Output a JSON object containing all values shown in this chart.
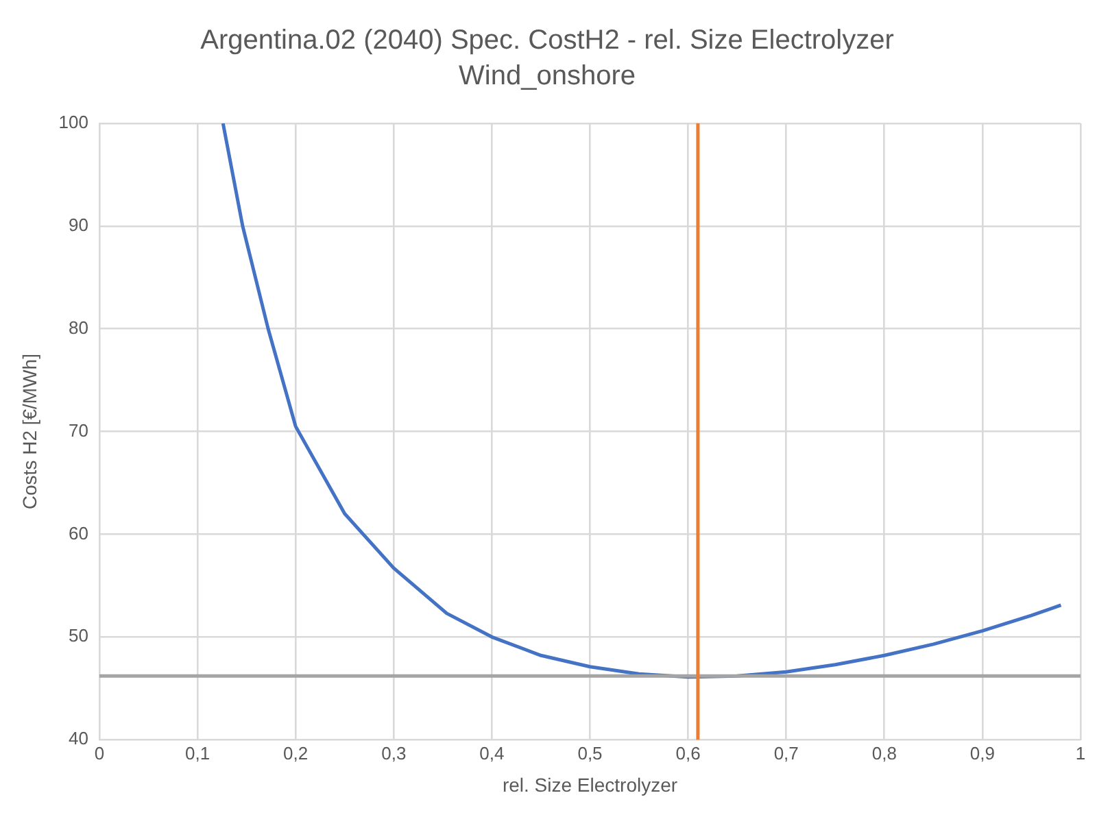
{
  "chart_data": {
    "type": "line",
    "title": "Argentina.02 (2040) Spec. CostH2 - rel. Size Electrolyzer",
    "subtitle": "Wind_onshore",
    "xlabel": "rel. Size Electrolyzer",
    "ylabel": "Costs H2 [€/MWh]",
    "series": [
      {
        "color": "#4472c4",
        "x": [
          0.126,
          0.146,
          0.172,
          0.2,
          0.25,
          0.3,
          0.354,
          0.4,
          0.45,
          0.5,
          0.55,
          0.6,
          0.65,
          0.7,
          0.75,
          0.8,
          0.85,
          0.9,
          0.95,
          0.98
        ],
        "values": [
          100,
          90,
          80,
          70.5,
          62,
          56.7,
          52.3,
          50,
          48.2,
          47.1,
          46.4,
          46.1,
          46.2,
          46.6,
          47.3,
          48.2,
          49.3,
          50.6,
          52.1,
          53.1
        ]
      }
    ],
    "xlim": [
      0,
      1
    ],
    "ylim": [
      40,
      100
    ],
    "xticks": [
      0,
      {
        "value": 0.1,
        "label": "0,1"
      },
      {
        "value": 0.2,
        "label": "0,2"
      },
      {
        "value": 0.3,
        "label": "0,3"
      },
      {
        "value": 0.4,
        "label": "0,4"
      },
      {
        "value": 0.5,
        "label": "0,5"
      },
      {
        "value": 0.6,
        "label": "0,6"
      },
      {
        "value": 0.7,
        "label": "0,7"
      },
      {
        "value": 0.8,
        "label": "0,8"
      },
      {
        "value": 0.9,
        "label": "0,9"
      },
      1
    ],
    "yticks": [
      40,
      50,
      60,
      70,
      80,
      90,
      100
    ],
    "ref_lines": [
      {
        "axis": "y",
        "value": 46.2,
        "color": "#a5a5a5"
      },
      {
        "axis": "x",
        "value": 0.61,
        "color": "#ed7d31"
      }
    ],
    "grid": true,
    "legend": false,
    "marker": "none",
    "line_style": "solid"
  }
}
